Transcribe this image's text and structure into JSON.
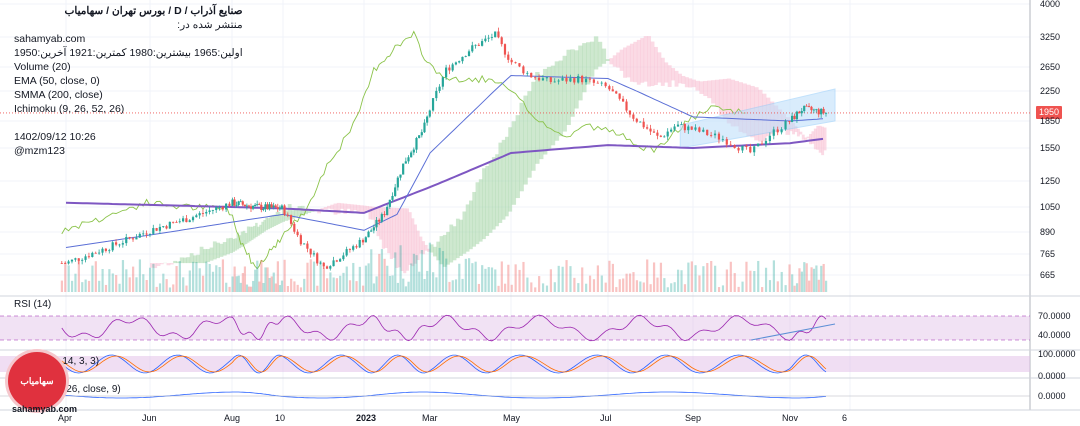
{
  "header": {
    "title": "صنایع  آذراب  /  D  /  بورس تهران / سهامیاب",
    "published_on": "منتشر شده در:",
    "site": "sahamyab.com",
    "ohlc": "اولین:1965  بیشترین:1980  کمترین:1921  آخرین:1950",
    "indicators": [
      "Volume (20)",
      "EMA (50, close, 0)",
      "SMMA (200, close)",
      "Ichimoku (9, 26, 52, 26)"
    ],
    "date": "1402/09/12 10:26",
    "author": "@mzm123"
  },
  "panes": {
    "rsi": {
      "label": "RSI (14)",
      "ticks": [
        "70.0000",
        "40.0000"
      ]
    },
    "stoch": {
      "label": "Stoch (14, 14, 3, 3)",
      "ticks": [
        "100.0000",
        "0.0000"
      ]
    },
    "macd": {
      "label": "MACD (12, 26, close, 9)",
      "ticks": [
        "0.0000"
      ]
    }
  },
  "logo": {
    "text": "سهامیاب"
  },
  "watermark": "sahamyab.com",
  "colors": {
    "up": "#26a69a",
    "down": "#ef5350",
    "ema": "#5b6fd6",
    "smma": "#7e57c2",
    "kumo_green": "#a5d6a7",
    "kumo_red": "#f8bbd0",
    "lagging": "#8bc34a",
    "channel": "#90caf9",
    "pane_fill": "#e1bee7"
  },
  "chart_data": {
    "type": "candlestick",
    "last_price": 1950,
    "price_axis": {
      "scale": "log",
      "ticks": [
        665,
        765,
        890,
        1050,
        1250,
        1550,
        1850,
        2250,
        2650,
        3250,
        4000
      ]
    },
    "x_ticks": [
      "Apr",
      "Jun",
      "Aug",
      "10",
      "2023",
      "Mar",
      "May",
      "Jul",
      "Sep",
      "Nov",
      "6"
    ],
    "close_path": {
      "x_tick_index": [
        0,
        0.5,
        1,
        1.5,
        2,
        2.5,
        3,
        3.2,
        3.5,
        3.8,
        4,
        4.3,
        4.6,
        4.9,
        5,
        5.2,
        5.5,
        5.8,
        6,
        6.2,
        6.4,
        6.7,
        7,
        7.3,
        7.6,
        7.8,
        8,
        8.3,
        8.6,
        8.8,
        9,
        9.2,
        9.4,
        9.6
      ],
      "close": [
        720,
        800,
        900,
        980,
        1080,
        1050,
        1040,
        850,
        700,
        780,
        850,
        1000,
        1400,
        1750,
        2000,
        2600,
        3000,
        3300,
        2750,
        2500,
        2400,
        2450,
        2300,
        1900,
        1650,
        1800,
        1750,
        1650,
        1500,
        1700,
        1850,
        2000,
        1980,
        1950
      ]
    },
    "ema50_anchor": [
      [
        0,
        800
      ],
      [
        2,
        950
      ],
      [
        3,
        1000
      ],
      [
        4,
        900
      ],
      [
        4.5,
        1000
      ],
      [
        5,
        1500
      ],
      [
        6,
        2500
      ],
      [
        7,
        2450
      ],
      [
        8,
        1900
      ],
      [
        9,
        1850
      ],
      [
        9.6,
        1880
      ]
    ],
    "smma200_anchor": [
      [
        0,
        1080
      ],
      [
        2,
        1050
      ],
      [
        3,
        1040
      ],
      [
        4,
        1010
      ],
      [
        5,
        1200
      ],
      [
        6,
        1500
      ],
      [
        7,
        1580
      ],
      [
        8,
        1550
      ],
      [
        9,
        1600
      ],
      [
        9.6,
        1650
      ]
    ],
    "volume_scale_max": 100,
    "rsi": {
      "levels": [
        70,
        40
      ]
    },
    "stoch": {
      "levels": [
        100,
        0
      ]
    },
    "macd": {
      "levels": [
        0
      ]
    }
  }
}
